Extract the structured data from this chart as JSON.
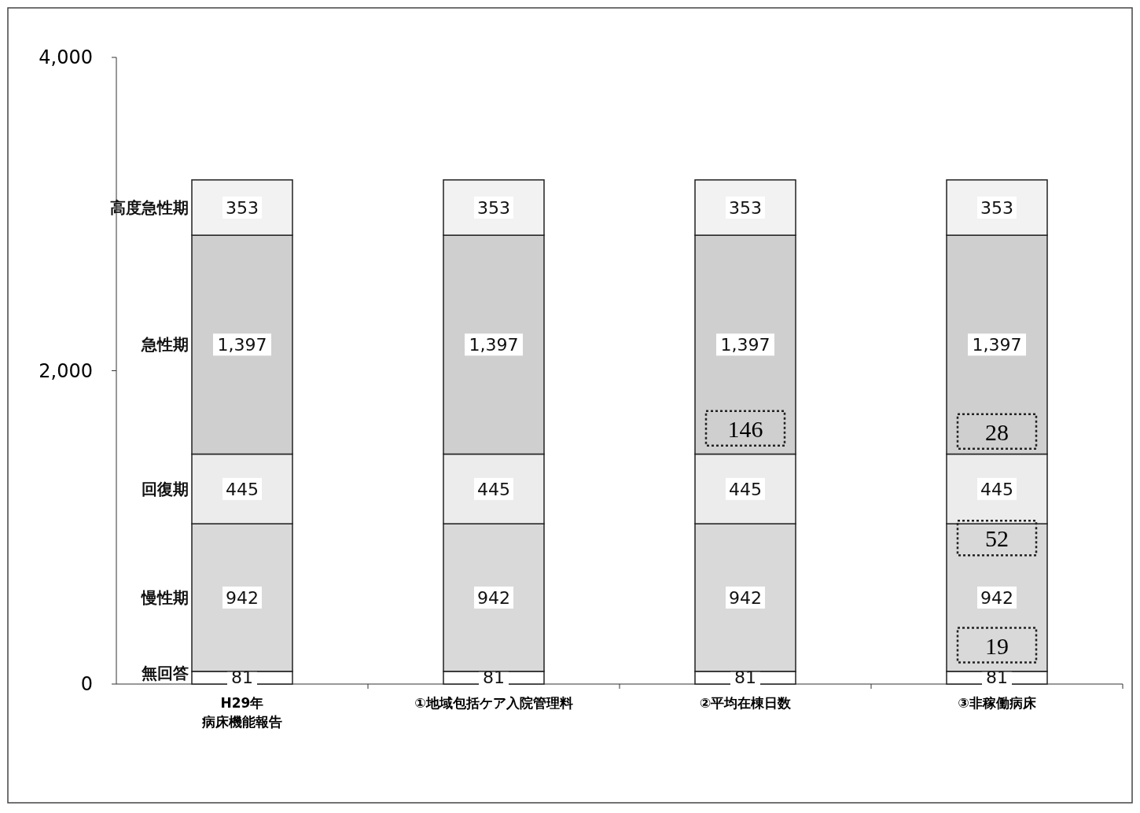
{
  "chart_data": {
    "type": "bar",
    "stacked": true,
    "data_labels": true,
    "legend": "left",
    "categories": [
      "H29年病床機能報告",
      "①地域包括ケア入院管理料",
      "②平均在棟日数",
      "③非稼働病床"
    ],
    "series": [
      {
        "name": "無回答",
        "color": "#ffffff",
        "values": [
          81,
          81,
          81,
          81
        ]
      },
      {
        "name": "慢性期",
        "color": "#d9d9d9",
        "values": [
          942,
          942,
          942,
          942
        ]
      },
      {
        "name": "回復期",
        "color": "#ececec",
        "values": [
          445,
          445,
          445,
          445
        ]
      },
      {
        "name": "急性期",
        "color": "#cfcfcf",
        "values": [
          1397,
          1397,
          1397,
          1397
        ],
        "value_labels": [
          "1,397",
          "1,397",
          "1,397",
          "1,397"
        ]
      },
      {
        "name": "高度急性期",
        "color": "#f2f2f2",
        "values": [
          353,
          353,
          353,
          353
        ]
      }
    ],
    "ylim": [
      0,
      4000
    ],
    "yticks": [
      0,
      {
        "value": 2000,
        "label": "2,000"
      },
      {
        "value": 4000,
        "label": "4,000"
      }
    ],
    "annotations": [
      "146",
      "28",
      "52",
      "19"
    ]
  }
}
